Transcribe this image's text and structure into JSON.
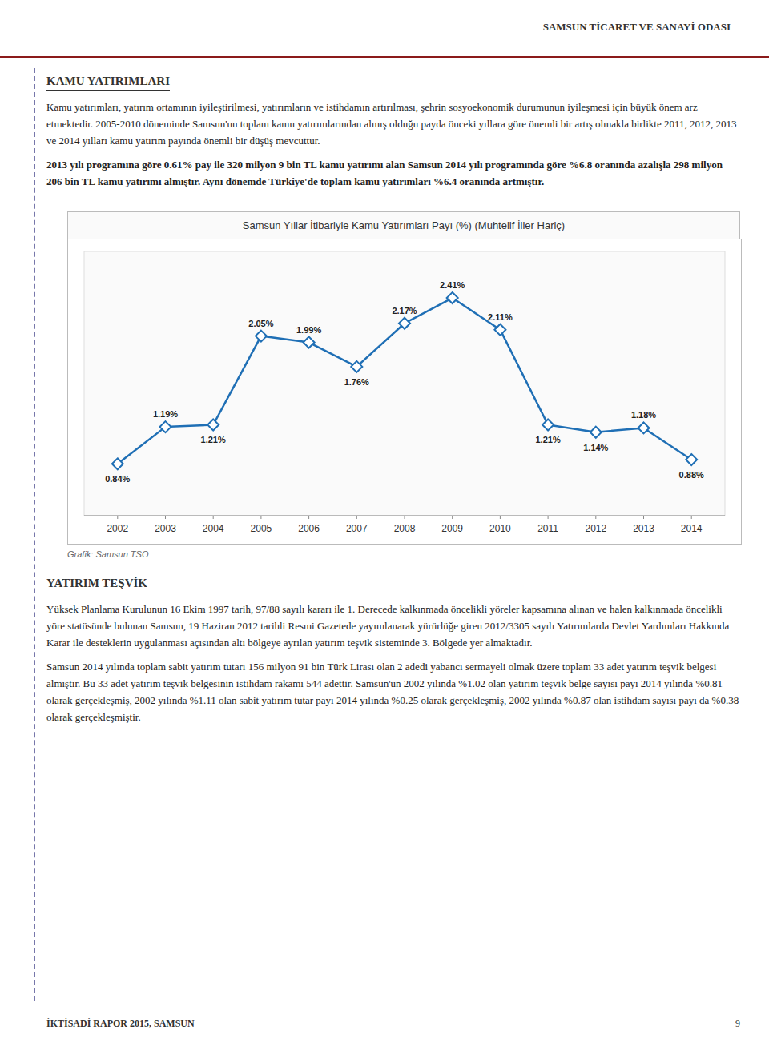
{
  "header_title": "SAMSUN TİCARET VE SANAYİ ODASI",
  "page_title": "KAMU YATIRIMLARI",
  "paragraphs": [
    "Kamu yatırımları, yatırım ortamının iyileştirilmesi, yatırımların ve istihdamın artırılması, şehrin sosyoekonomik durumunun iyileşmesi için büyük önem arz etmektedir. 2005-2010 döneminde Samsun'un toplam kamu yatırımlarından almış olduğu payda önceki yıllara göre önemli bir artış olmakla birlikte 2011, 2012, 2013 ve 2014 yılları kamu yatırım payında önemli bir düşüş mevcuttur.",
    "2013 yılı programına göre 0.61% pay ile 320 milyon 9 bin TL kamu yatırımı alan Samsun 2014 yılı programında göre %6.8 oranında azalışla 298 milyon 206 bin TL kamu yatırımı almıştır. Aynı dönemde Türkiye'de toplam kamu yatırımları %6.4 oranında artmıştır."
  ],
  "section_title": "YATIRIM TEŞVİK",
  "section_paragraphs": [
    "Yüksek Planlama Kurulunun 16 Ekim 1997 tarih, 97/88 sayılı kararı ile 1. Derecede kalkınmada öncelikli yöreler kapsamına alınan ve halen kalkınmada öncelikli yöre statüsünde bulunan Samsun, 19 Haziran 2012 tarihli Resmi Gazetede yayımlanarak yürürlüğe giren 2012/3305 sayılı Yatırımlarda Devlet Yardımları Hakkında Karar ile desteklerin uygulanması açısından altı bölgeye ayrılan yatırım teşvik sisteminde 3. Bölgede yer almaktadır.",
    "Samsun 2014 yılında toplam sabit yatırım tutarı 156 milyon 91 bin Türk Lirası olan 2 adedi yabancı sermayeli olmak üzere toplam 33 adet yatırım teşvik belgesi almıştır. Bu 33 adet yatırım teşvik belgesinin istihdam rakamı 544 adettir. Samsun'un 2002 yılında %1.02 olan yatırım teşvik belge sayısı payı 2014 yılında %0.81 olarak gerçekleşmiş, 2002 yılında %1.11 olan sabit yatırım tutar payı 2014 yılında %0.25 olarak gerçekleşmiş, 2002 yılında %0.87 olan istihdam sayısı payı da %0.38 olarak gerçekleşmiştir."
  ],
  "footer_text": "İKTİSADİ RAPOR 2015, SAMSUN",
  "footer_page": "9",
  "chart_data": {
    "type": "line",
    "title": "Samsun Yıllar İtibariyle Kamu Yatırımları Payı (%) (Muhtelif İller Hariç)",
    "source": "Grafik: Samsun TSO",
    "x": [
      2002,
      2003,
      2004,
      2005,
      2006,
      2007,
      2008,
      2009,
      2010,
      2011,
      2012,
      2013,
      2014
    ],
    "values": [
      0.84,
      1.19,
      1.21,
      2.05,
      1.99,
      1.76,
      2.17,
      2.41,
      2.11,
      1.21,
      1.14,
      1.18,
      0.88
    ],
    "value_labels": [
      "0.84%",
      "1.19%",
      "1.21%",
      "2.05%",
      "1.99%",
      "1.76%",
      "2.17%",
      "2.41%",
      "2.11%",
      "1.21%",
      "1.14%",
      "1.18%",
      "0.88%"
    ],
    "color": "#1F6FB5",
    "marker": "diamond",
    "xlim": [
      2001.3,
      2014.7
    ],
    "xticks": [
      2002,
      2003,
      2004,
      2005,
      2006,
      2007,
      2008,
      2009,
      2010,
      2011,
      2012,
      2013,
      2014
    ],
    "ylim": [
      0.35,
      2.85
    ],
    "grid": false,
    "tick_labels": "x",
    "data_labels": true
  }
}
